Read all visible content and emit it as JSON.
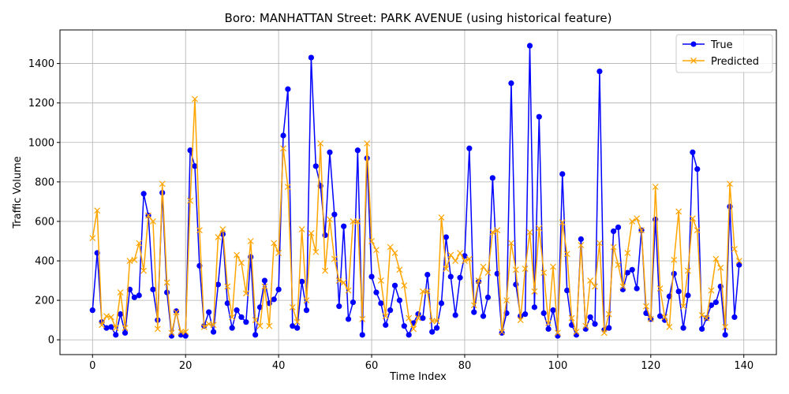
{
  "chart_data": {
    "type": "line",
    "title": "Boro: MANHATTAN Street: PARK AVENUE (using historical feature)",
    "xlabel": "Time Index",
    "ylabel": "Traffic Volume",
    "xlim": [
      -7,
      147
    ],
    "ylim": [
      -75,
      1570
    ],
    "xticks": [
      0,
      20,
      40,
      60,
      80,
      100,
      120,
      140
    ],
    "yticks": [
      0,
      200,
      400,
      600,
      800,
      1000,
      1200,
      1400
    ],
    "grid": true,
    "legend_position": "top-right",
    "colors": {
      "true": "#0000ff",
      "predicted": "#ffa500"
    },
    "series": [
      {
        "name": "True",
        "marker": "circle",
        "values": [
          150,
          440,
          90,
          60,
          65,
          25,
          130,
          35,
          255,
          215,
          225,
          740,
          630,
          255,
          100,
          745,
          240,
          20,
          145,
          25,
          20,
          960,
          880,
          375,
          70,
          140,
          40,
          280,
          535,
          185,
          60,
          150,
          115,
          90,
          420,
          25,
          165,
          300,
          185,
          205,
          255,
          1035,
          1270,
          70,
          60,
          295,
          150,
          1430,
          880,
          780,
          530,
          950,
          635,
          170,
          575,
          105,
          190,
          960,
          25,
          920,
          320,
          240,
          185,
          75,
          150,
          275,
          200,
          70,
          25,
          85,
          130,
          110,
          330,
          40,
          60,
          185,
          520,
          320,
          125,
          315,
          425,
          970,
          140,
          295,
          120,
          215,
          820,
          335,
          35,
          135,
          1300,
          280,
          120,
          130,
          1490,
          165,
          1130,
          135,
          55,
          150,
          20,
          840,
          250,
          75,
          25,
          510,
          55,
          115,
          80,
          1360,
          50,
          60,
          550,
          570,
          255,
          340,
          355,
          260,
          555,
          135,
          105,
          610,
          120,
          100,
          220,
          335,
          245,
          60,
          225,
          950,
          865,
          55,
          110,
          175,
          190,
          270,
          25,
          675,
          115,
          380
        ]
      },
      {
        "name": "Predicted",
        "marker": "x",
        "values": [
          515,
          655,
          75,
          120,
          115,
          60,
          240,
          60,
          400,
          405,
          490,
          350,
          630,
          600,
          55,
          790,
          290,
          35,
          140,
          40,
          40,
          705,
          1220,
          555,
          65,
          80,
          75,
          520,
          560,
          270,
          115,
          430,
          390,
          235,
          500,
          100,
          70,
          270,
          70,
          490,
          440,
          970,
          775,
          165,
          90,
          560,
          200,
          540,
          445,
          995,
          350,
          610,
          410,
          300,
          290,
          250,
          600,
          600,
          105,
          995,
          500,
          455,
          300,
          120,
          470,
          440,
          355,
          275,
          110,
          55,
          110,
          245,
          245,
          95,
          95,
          620,
          360,
          430,
          400,
          440,
          400,
          410,
          175,
          300,
          370,
          340,
          545,
          555,
          40,
          200,
          490,
          355,
          100,
          360,
          545,
          245,
          565,
          340,
          85,
          370,
          35,
          595,
          435,
          110,
          40,
          480,
          70,
          300,
          270,
          490,
          35,
          130,
          470,
          380,
          270,
          440,
          600,
          615,
          555,
          170,
          105,
          775,
          260,
          115,
          65,
          405,
          650,
          170,
          350,
          615,
          555,
          125,
          110,
          250,
          410,
          365,
          65,
          790,
          460,
          400
        ]
      }
    ]
  }
}
